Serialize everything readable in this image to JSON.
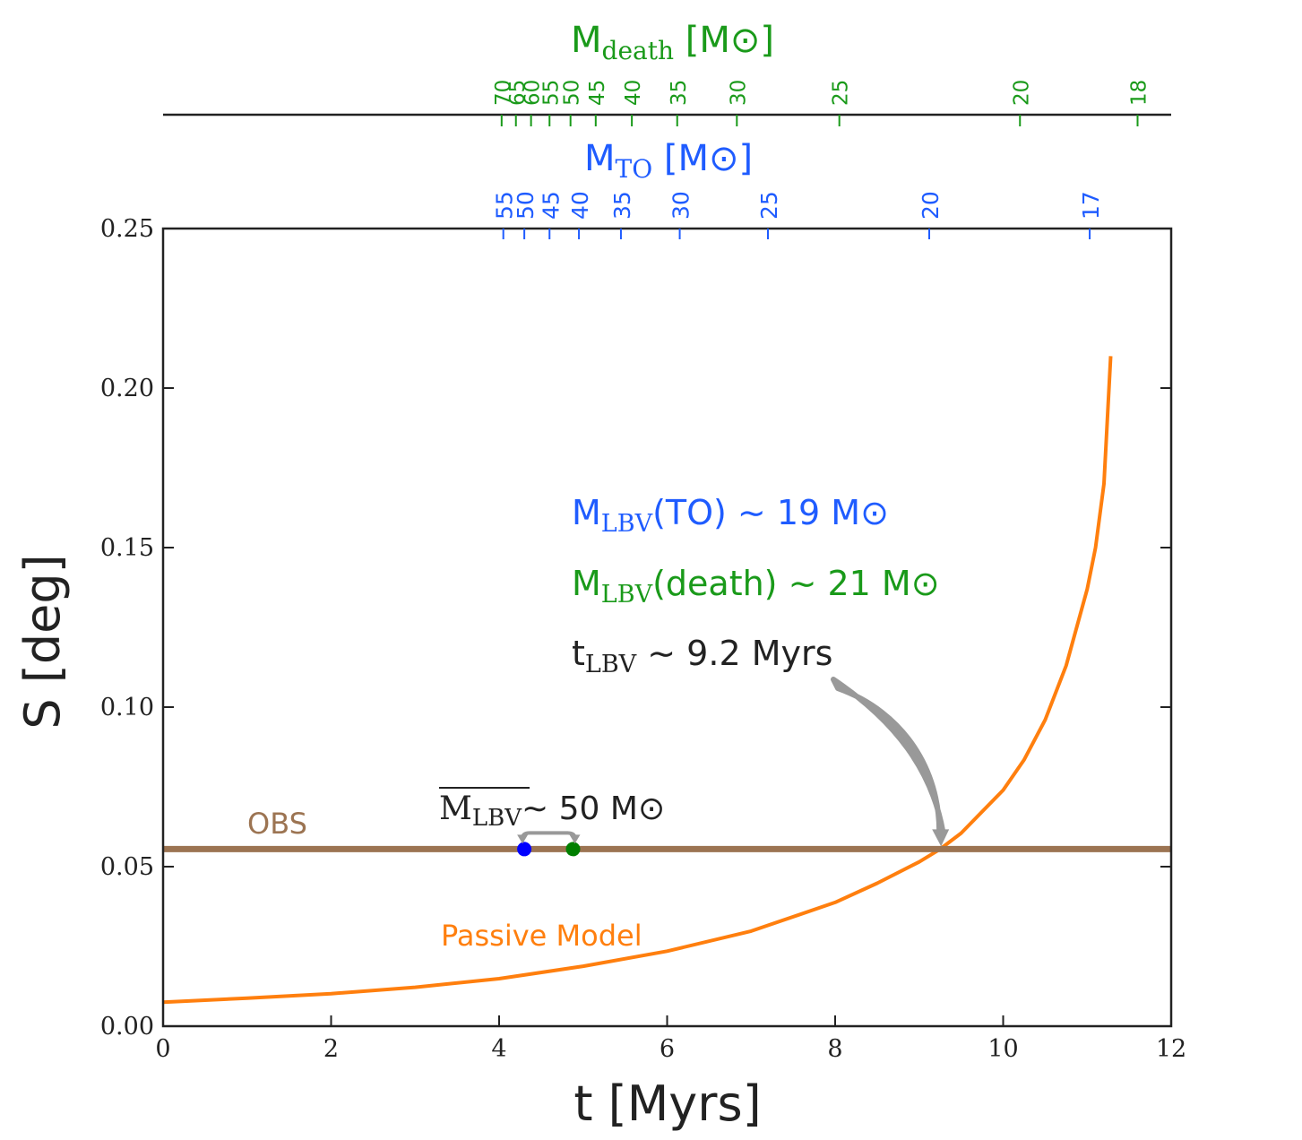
{
  "chart_data": {
    "type": "line",
    "xlabel": "t [Myrs]",
    "ylabel": "S [deg]",
    "xlim": [
      0,
      12
    ],
    "ylim": [
      0,
      0.25
    ],
    "x_ticks": [
      0,
      2,
      4,
      6,
      8,
      10,
      12
    ],
    "x_tick_labels": [
      "0",
      "2",
      "4",
      "6",
      "8",
      "10",
      "12"
    ],
    "y_ticks": [
      0,
      0.05,
      0.1,
      0.15,
      0.2,
      0.25
    ],
    "y_tick_labels": [
      "0.00",
      "0.05",
      "0.10",
      "0.15",
      "0.20",
      "0.25"
    ],
    "top_axis_to": {
      "label": "M",
      "label_sub": "TO",
      "label_unit": "[M⊙]",
      "color": "#1f5cff",
      "ticks": [
        {
          "label": "55",
          "t": 4.05
        },
        {
          "label": "50",
          "t": 4.3
        },
        {
          "label": "45",
          "t": 4.6
        },
        {
          "label": "40",
          "t": 4.95
        },
        {
          "label": "35",
          "t": 5.45
        },
        {
          "label": "30",
          "t": 6.15
        },
        {
          "label": "25",
          "t": 7.2
        },
        {
          "label": "20",
          "t": 9.12
        },
        {
          "label": "17",
          "t": 11.03
        }
      ]
    },
    "top_axis_death": {
      "label": "M",
      "label_sub": "death",
      "label_unit": "[M⊙]",
      "color": "#1a9a1a",
      "ticks": [
        {
          "label": "70",
          "t": 4.03
        },
        {
          "label": "65",
          "t": 4.2
        },
        {
          "label": "60",
          "t": 4.38
        },
        {
          "label": "55",
          "t": 4.6
        },
        {
          "label": "50",
          "t": 4.85
        },
        {
          "label": "45",
          "t": 5.15
        },
        {
          "label": "40",
          "t": 5.58
        },
        {
          "label": "35",
          "t": 6.12
        },
        {
          "label": "30",
          "t": 6.83
        },
        {
          "label": "25",
          "t": 8.05
        },
        {
          "label": "20",
          "t": 10.2
        },
        {
          "label": "18",
          "t": 11.6
        }
      ]
    },
    "series": [
      {
        "name": "Passive Model",
        "color": "#ff7f0e",
        "x": [
          0,
          1,
          2,
          3,
          4,
          5,
          6,
          7,
          8,
          8.5,
          9,
          9.25,
          9.5,
          10,
          10.25,
          10.5,
          10.75,
          11,
          11.1,
          11.2,
          11.28
        ],
        "y": [
          0.0075,
          0.0088,
          0.0102,
          0.0122,
          0.0149,
          0.0188,
          0.0235,
          0.0298,
          0.0388,
          0.0448,
          0.0515,
          0.0555,
          0.0605,
          0.074,
          0.0835,
          0.096,
          0.113,
          0.137,
          0.15,
          0.17,
          0.21
        ]
      },
      {
        "name": "OBS",
        "color": "#9c7452",
        "x": [
          0,
          12
        ],
        "y": [
          0.0555,
          0.0555
        ]
      }
    ],
    "points": [
      {
        "name": "TO point",
        "x": 4.3,
        "y": 0.0555,
        "color": "#0000ff"
      },
      {
        "name": "death point",
        "x": 4.88,
        "y": 0.0555,
        "color": "#007f00"
      }
    ],
    "annotations": {
      "mlbv_to": {
        "main": "M",
        "sub": "LBV",
        "rest": "(TO) ∼ 19 M⊙",
        "color": "#1f5cff"
      },
      "mlbv_death": {
        "main": "M",
        "sub": "LBV",
        "rest": "(death) ∼ 21 M⊙",
        "color": "#1a9a1a"
      },
      "tlbv": {
        "main": "t",
        "sub": "LBV",
        "rest": " ∼ 9.2 Myrs",
        "color": "#222222"
      },
      "mean_mlbv": {
        "main": "M",
        "sub": "LBV",
        "rest": "∼ 50 M⊙",
        "color": "#222222"
      },
      "obs_label": {
        "text": "OBS",
        "color": "#9c7452"
      },
      "model_label": {
        "text": "Passive Model",
        "color": "#ff7f0e"
      },
      "arrow_color": "#999999"
    }
  }
}
